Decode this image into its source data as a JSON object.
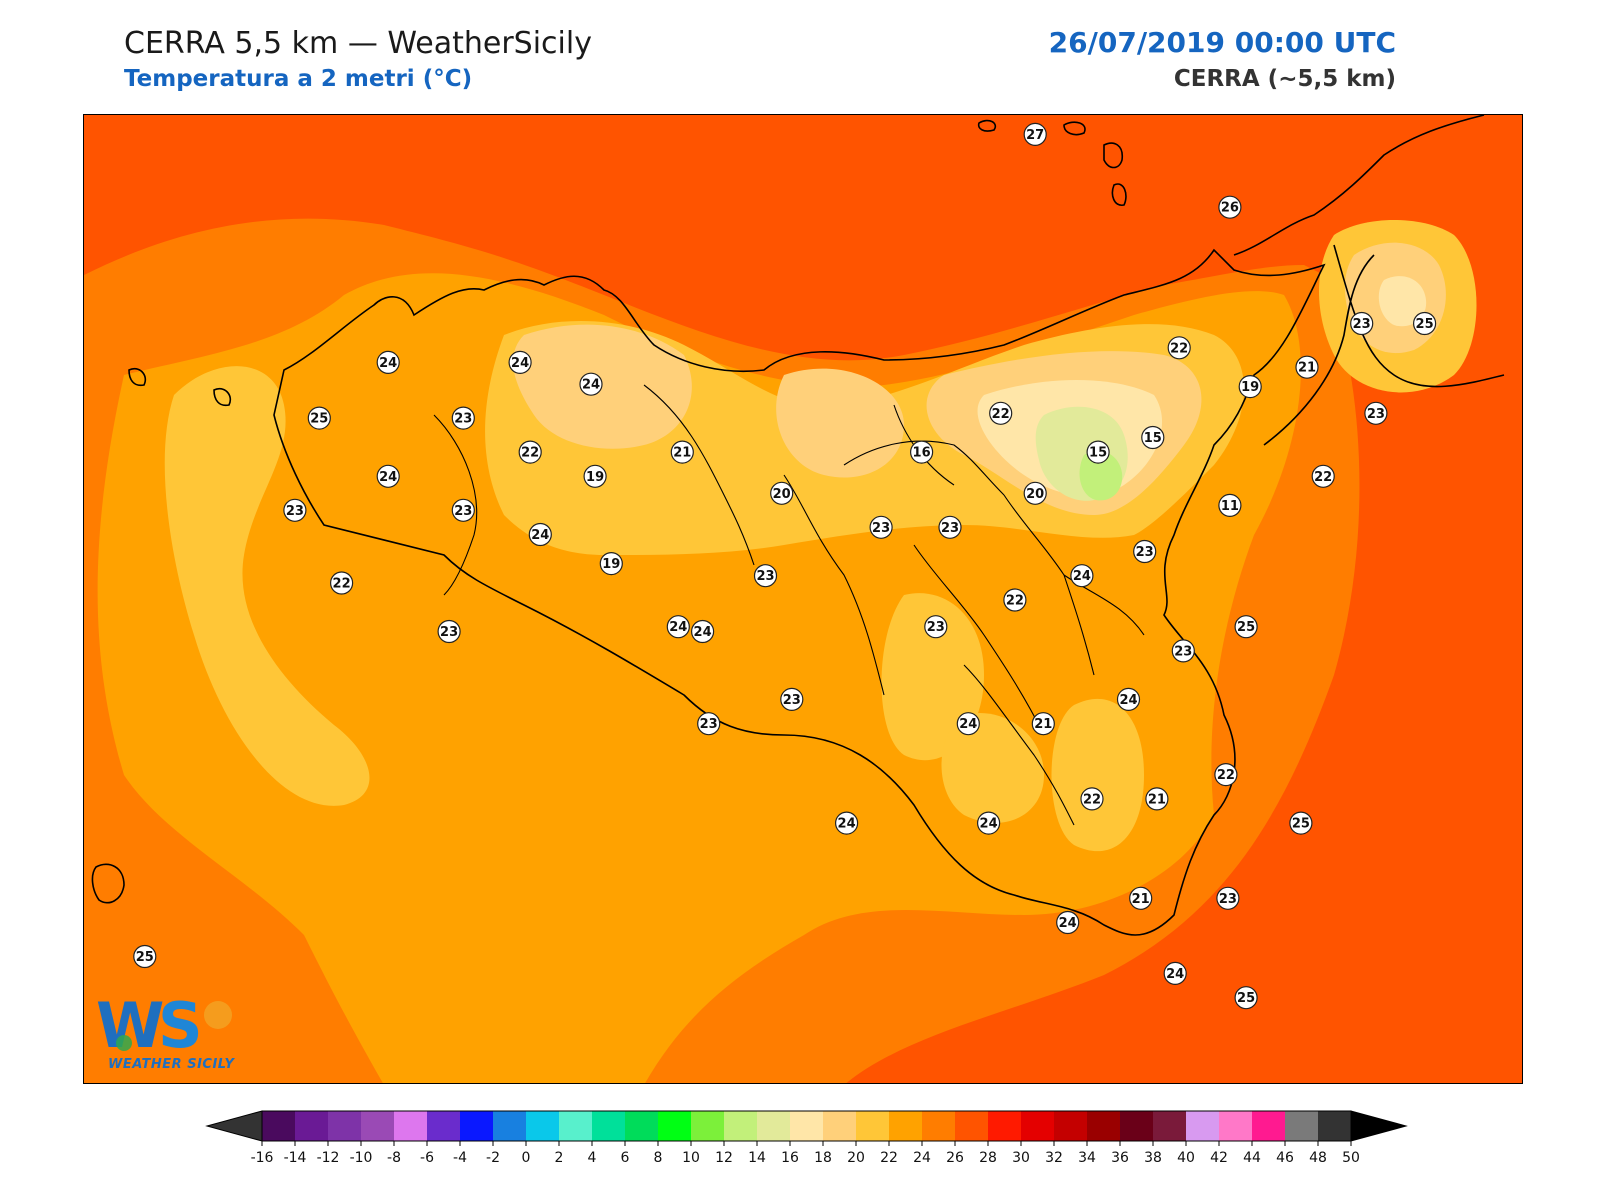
{
  "header": {
    "title": "CERRA 5,5 km — WeatherSicily",
    "subtitle": "Temperatura a 2 metri (°C)",
    "datetime": "26/07/2019 00:00 UTC",
    "model": "CERRA (~5,5 km)"
  },
  "colors": {
    "sea_base": "#ff5400",
    "c22_24": "#ffa200",
    "c20_22": "#ffc637",
    "c18_20": "#ffd07a",
    "c16_18": "#ffe6a8",
    "c14_16": "#e2ea9a",
    "c12_14": "#c2f07a",
    "c24_26": "#ff7d00",
    "c26_28": "#ff5400"
  },
  "colorbar": {
    "ticks": [
      "-16",
      "-14",
      "-12",
      "-10",
      "-8",
      "-6",
      "-4",
      "-2",
      "0",
      "2",
      "4",
      "6",
      "8",
      "10",
      "12",
      "14",
      "16",
      "18",
      "20",
      "22",
      "24",
      "26",
      "28",
      "30",
      "32",
      "34",
      "36",
      "38",
      "40",
      "42",
      "44",
      "46",
      "48",
      "50"
    ],
    "colors": [
      "#4a0a5e",
      "#6a1a95",
      "#7e33a8",
      "#9a4ab5",
      "#dd77ee",
      "#6a2ccc",
      "#0a18ff",
      "#1880e0",
      "#0ac8ea",
      "#58f0cc",
      "#00e09a",
      "#00dc5a",
      "#00ff14",
      "#7cf03a",
      "#c2f07a",
      "#e2ea9a",
      "#ffe6a8",
      "#ffd07a",
      "#ffc637",
      "#ffa200",
      "#ff7d00",
      "#ff5400",
      "#ff1a00",
      "#e40000",
      "#c40000",
      "#9a0000",
      "#6a0018",
      "#7a1a3a",
      "#d89af0",
      "#ff78c8",
      "#ff1a90",
      "#7a7a7a",
      "#333333"
    ],
    "min_color": "#333333",
    "max_color": "#000000"
  },
  "logo": {
    "text": "WEATHER SICILY"
  },
  "stations": [
    {
      "v": "27",
      "lon": 14.04,
      "lat": 39.27
    },
    {
      "v": "26",
      "lon": 15.0,
      "lat": 38.97
    },
    {
      "v": "25",
      "lon": 15.96,
      "lat": 38.49
    },
    {
      "v": "23",
      "lon": 15.65,
      "lat": 38.49
    },
    {
      "v": "22",
      "lon": 14.75,
      "lat": 38.39
    },
    {
      "v": "21",
      "lon": 15.38,
      "lat": 38.31
    },
    {
      "v": "19",
      "lon": 15.1,
      "lat": 38.23
    },
    {
      "v": "23",
      "lon": 15.72,
      "lat": 38.12
    },
    {
      "v": "22",
      "lon": 13.87,
      "lat": 38.12
    },
    {
      "v": "15",
      "lon": 14.62,
      "lat": 38.02
    },
    {
      "v": "15",
      "lon": 14.35,
      "lat": 37.96
    },
    {
      "v": "16",
      "lon": 13.48,
      "lat": 37.96
    },
    {
      "v": "22",
      "lon": 15.46,
      "lat": 37.86
    },
    {
      "v": "20",
      "lon": 14.04,
      "lat": 37.79
    },
    {
      "v": "11",
      "lon": 15.0,
      "lat": 37.74
    },
    {
      "v": "20",
      "lon": 12.79,
      "lat": 37.79
    },
    {
      "v": "23",
      "lon": 13.28,
      "lat": 37.65
    },
    {
      "v": "23",
      "lon": 13.62,
      "lat": 37.65
    },
    {
      "v": "23",
      "lon": 14.58,
      "lat": 37.55
    },
    {
      "v": "24",
      "lon": 14.27,
      "lat": 37.45
    },
    {
      "v": "22",
      "lon": 13.94,
      "lat": 37.35
    },
    {
      "v": "23",
      "lon": 12.71,
      "lat": 37.45
    },
    {
      "v": "25",
      "lon": 15.08,
      "lat": 37.24
    },
    {
      "v": "23",
      "lon": 13.55,
      "lat": 37.24
    },
    {
      "v": "23",
      "lon": 14.77,
      "lat": 37.14
    },
    {
      "v": "24",
      "lon": 12.28,
      "lat": 37.24
    },
    {
      "v": "24",
      "lon": 14.5,
      "lat": 36.94
    },
    {
      "v": "23",
      "lon": 12.84,
      "lat": 36.94
    },
    {
      "v": "24",
      "lon": 13.71,
      "lat": 36.84
    },
    {
      "v": "21",
      "lon": 14.08,
      "lat": 36.84
    },
    {
      "v": "23",
      "lon": 12.43,
      "lat": 36.84
    },
    {
      "v": "22",
      "lon": 14.98,
      "lat": 36.63
    },
    {
      "v": "22",
      "lon": 14.32,
      "lat": 36.53
    },
    {
      "v": "21",
      "lon": 14.64,
      "lat": 36.53
    },
    {
      "v": "25",
      "lon": 15.35,
      "lat": 36.43
    },
    {
      "v": "24",
      "lon": 13.11,
      "lat": 36.43
    },
    {
      "v": "24",
      "lon": 13.81,
      "lat": 36.43
    },
    {
      "v": "21",
      "lon": 14.56,
      "lat": 36.12
    },
    {
      "v": "23",
      "lon": 14.99,
      "lat": 36.12
    },
    {
      "v": "24",
      "lon": 14.2,
      "lat": 36.02
    },
    {
      "v": "24",
      "lon": 14.73,
      "lat": 35.81
    },
    {
      "v": "25",
      "lon": 15.08,
      "lat": 35.71
    },
    {
      "v": "24",
      "lon": 10.85,
      "lat": 38.33
    },
    {
      "v": "24",
      "lon": 11.5,
      "lat": 38.33
    },
    {
      "v": "24",
      "lon": 11.85,
      "lat": 38.24
    },
    {
      "v": "25",
      "lon": 10.51,
      "lat": 38.1
    },
    {
      "v": "23",
      "lon": 11.22,
      "lat": 38.1
    },
    {
      "v": "22",
      "lon": 11.55,
      "lat": 37.96
    },
    {
      "v": "19",
      "lon": 11.87,
      "lat": 37.86
    },
    {
      "v": "21",
      "lon": 12.3,
      "lat": 37.96
    },
    {
      "v": "24",
      "lon": 10.85,
      "lat": 37.86
    },
    {
      "v": "23",
      "lon": 11.22,
      "lat": 37.72
    },
    {
      "v": "23",
      "lon": 10.39,
      "lat": 37.72
    },
    {
      "v": "24",
      "lon": 11.6,
      "lat": 37.62
    },
    {
      "v": "19",
      "lon": 11.95,
      "lat": 37.5
    },
    {
      "v": "22",
      "lon": 10.62,
      "lat": 37.42
    },
    {
      "v": "23",
      "lon": 11.15,
      "lat": 37.22
    },
    {
      "v": "24",
      "lon": 12.4,
      "lat": 37.22
    },
    {
      "v": "25",
      "lon": 9.65,
      "lat": 35.88
    }
  ]
}
